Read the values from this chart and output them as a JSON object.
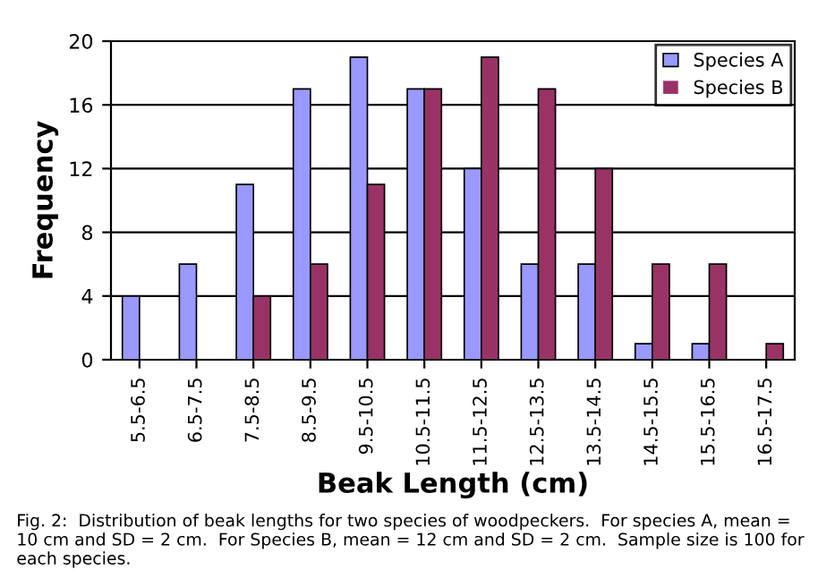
{
  "chart_data": {
    "type": "bar",
    "xlabel": "Beak Length (cm)",
    "ylabel": "Frequency",
    "categories": [
      "5.5-6.5",
      "6.5-7.5",
      "7.5-8.5",
      "8.5-9.5",
      "9.5-10.5",
      "10.5-11.5",
      "11.5-12.5",
      "12.5-13.5",
      "13.5-14.5",
      "14.5-15.5",
      "15.5-16.5",
      "16.5-17.5"
    ],
    "series": [
      {
        "name": "Species A",
        "color": "#9999ff",
        "values": [
          4,
          6,
          11,
          17,
          19,
          17,
          12,
          6,
          6,
          1,
          1,
          0
        ]
      },
      {
        "name": "Species B",
        "color": "#993366",
        "values": [
          0,
          0,
          4,
          6,
          11,
          17,
          19,
          17,
          12,
          6,
          6,
          1
        ]
      }
    ],
    "ylim": [
      0,
      20
    ],
    "yticks": [
      0,
      4,
      8,
      12,
      16,
      20
    ],
    "grid": "y",
    "legend": "top right",
    "annotations": [
      "Fig. 2:  Distribution of beak lengths for two species of woodpeckers.  For species A, mean = 10 cm and SD = 2 cm.  For Species B, mean = 12 cm and SD = 2 cm.  Sample size is 100 for each species."
    ]
  }
}
